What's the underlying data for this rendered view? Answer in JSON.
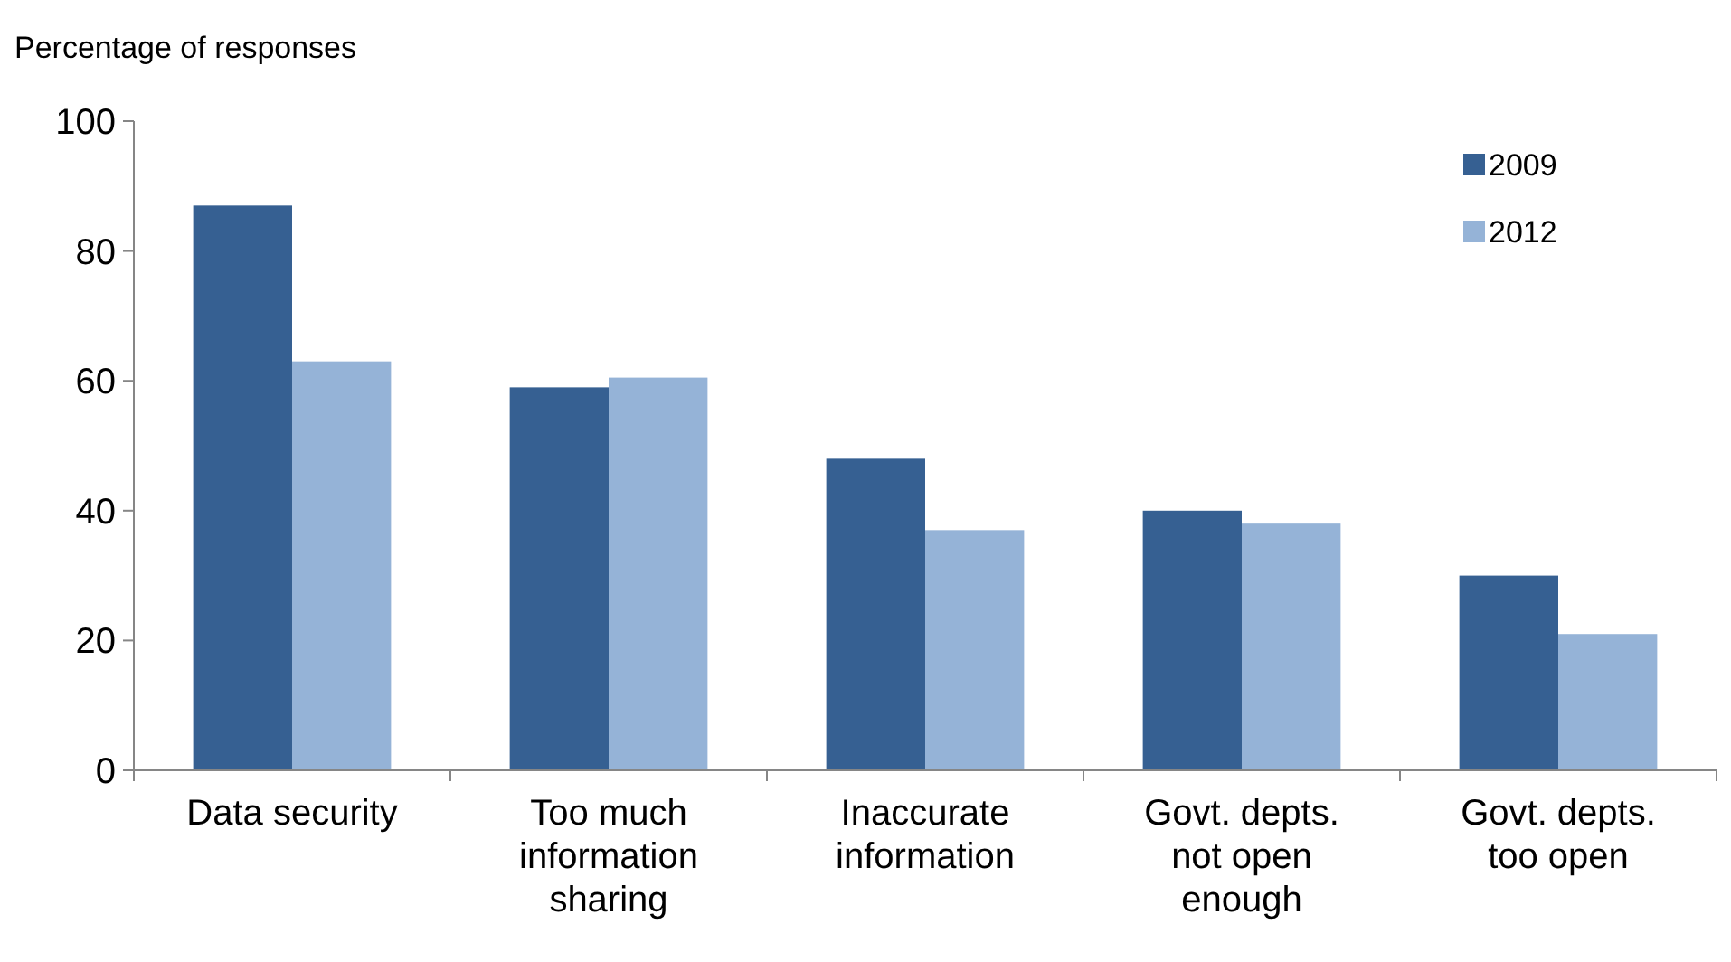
{
  "chart_data": {
    "type": "bar",
    "ylabel": "Percentage of responses",
    "categories": [
      "Data security",
      "Too much information sharing",
      "Inaccurate information",
      "Govt. depts. not open enough",
      "Govt. depts. too open"
    ],
    "series": [
      {
        "name": "2009",
        "color": "#366092",
        "values": [
          87,
          59,
          48,
          40,
          30
        ]
      },
      {
        "name": "2012",
        "color": "#95b3d7",
        "values": [
          63,
          60.5,
          37,
          38,
          21
        ]
      }
    ],
    "ylim": [
      0,
      100
    ],
    "yticks": [
      0,
      20,
      40,
      60,
      80,
      100
    ],
    "grid": false,
    "legend": "top right"
  }
}
